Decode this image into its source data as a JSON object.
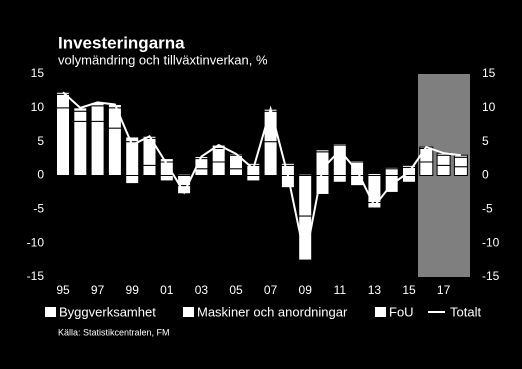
{
  "chart_data": {
    "type": "stacked-bar-line",
    "title": "Investeringarna",
    "subtitle": "volymändring och tillväxtinverkan, %",
    "source": "Källa: Statistikcentralen, FM",
    "categories": [
      "95",
      null,
      "97",
      null,
      "99",
      null,
      "01",
      null,
      "03",
      null,
      "05",
      null,
      "07",
      null,
      "09",
      null,
      "11",
      null,
      "13",
      null,
      "15",
      null,
      "17",
      null
    ],
    "series": [
      {
        "name": "Byggverksamhet",
        "color": "#ffffff",
        "values": [
          10,
          8,
          8,
          7,
          -1.2,
          1.5,
          -0.8,
          -1.5,
          1,
          2,
          1,
          -0.8,
          5,
          -1.8,
          -6,
          -2.8,
          -1,
          -1.5,
          -4,
          -2.5,
          -1,
          2,
          1.5,
          1.3
        ]
      },
      {
        "name": "Maskiner och anordningar",
        "color": "#ffffff",
        "values": [
          2,
          1.5,
          2.3,
          3,
          5,
          4,
          2,
          -1.2,
          1.5,
          2,
          2,
          1.5,
          4.5,
          1.5,
          -6.5,
          3.5,
          4.5,
          2,
          0.3,
          1,
          1.2,
          2,
          1.5,
          1.4
        ]
      },
      {
        "name": "FoU",
        "color": "#ffffff",
        "values": [
          0.3,
          0.5,
          0.5,
          0.5,
          0.7,
          0.3,
          0.5,
          0.2,
          0.3,
          0.5,
          0.2,
          0.3,
          0.3,
          0.3,
          0.2,
          0.3,
          0.2,
          0.2,
          -0.8,
          0.2,
          0.3,
          0.2,
          0.3,
          0.3
        ]
      }
    ],
    "total": {
      "name": "Totalt",
      "color": "#ffffff",
      "values": [
        12.3,
        10,
        10.8,
        10.5,
        4.5,
        5.8,
        1.7,
        -2.5,
        2.8,
        4.5,
        3.2,
        1,
        9.8,
        0,
        -12.3,
        1,
        3.7,
        0.7,
        -4.5,
        -1.3,
        0.5,
        4.2,
        3.3,
        3
      ]
    },
    "ylim": [
      -15,
      15
    ],
    "yticks": [
      -15,
      -10,
      -5,
      0,
      5,
      10,
      15
    ],
    "y2lim": [
      -15,
      15
    ],
    "y2ticks": [
      -15,
      -10,
      -5,
      0,
      5,
      10,
      15
    ]
  }
}
